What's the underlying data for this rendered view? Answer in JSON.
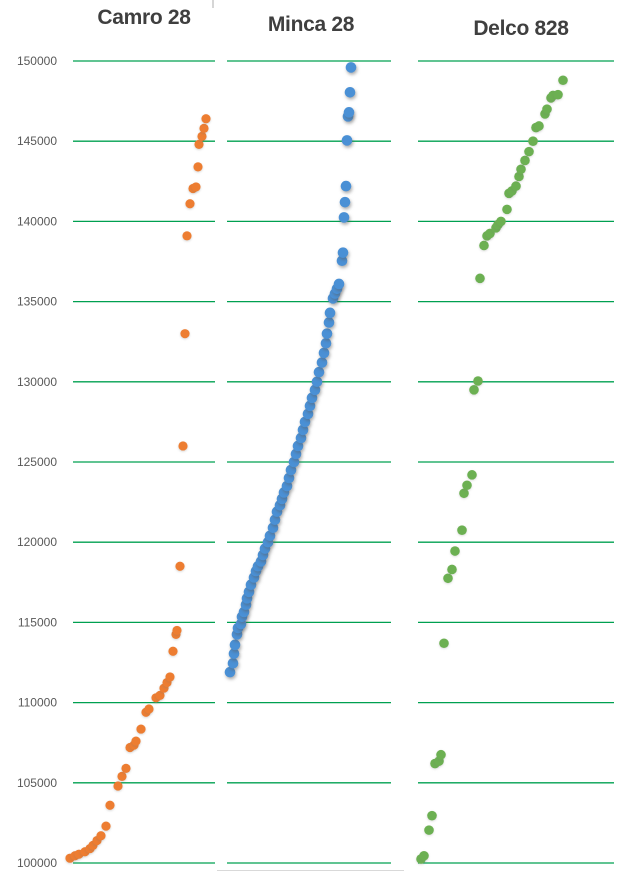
{
  "chart_data": {
    "type": "scatter",
    "description": "Three-panel sorted scatter (strip) chart of values by rank for three product models",
    "ylim": [
      100000,
      150000
    ],
    "ytick_step": 5000,
    "ytick_labels": [
      "150000",
      "145000",
      "140000",
      "135000",
      "130000",
      "125000",
      "120000",
      "115000",
      "110000",
      "105000",
      "100000"
    ],
    "xlabel": "",
    "ylabel": "",
    "grid": true,
    "grid_color": "#00A050",
    "axis_label_color": "#595959",
    "title_color": "#3f3f3f",
    "legend": "none",
    "panels": [
      {
        "title": "Camro 28",
        "color": "#ED7D31",
        "points": [
          [
            70,
            100300
          ],
          [
            75,
            100450
          ],
          [
            79,
            100550
          ],
          [
            85,
            100700
          ],
          [
            90,
            100900
          ],
          [
            93,
            101100
          ],
          [
            97,
            101400
          ],
          [
            101,
            101700
          ],
          [
            106,
            102300
          ],
          [
            110,
            103600
          ],
          [
            118,
            104800
          ],
          [
            122,
            105400
          ],
          [
            126,
            105900
          ],
          [
            130,
            107200
          ],
          [
            134,
            107350
          ],
          [
            136,
            107600
          ],
          [
            141,
            108350
          ],
          [
            146,
            109400
          ],
          [
            149,
            109600
          ],
          [
            156,
            110300
          ],
          [
            160,
            110450
          ],
          [
            164,
            110900
          ],
          [
            167,
            111250
          ],
          [
            170,
            111600
          ],
          [
            173,
            113200
          ],
          [
            176,
            114250
          ],
          [
            177,
            114500
          ],
          [
            180,
            118500
          ],
          [
            183,
            126000
          ],
          [
            185,
            133000
          ],
          [
            187,
            139100
          ],
          [
            190,
            141100
          ],
          [
            193,
            142050
          ],
          [
            196,
            142150
          ],
          [
            198,
            143400
          ],
          [
            199,
            144800
          ],
          [
            202,
            145300
          ],
          [
            204,
            145800
          ],
          [
            206,
            146400
          ]
        ]
      },
      {
        "title": "Minca 28",
        "color": "#4A90D5",
        "points": [
          [
            230,
            111900
          ],
          [
            233,
            112450
          ],
          [
            234,
            113050
          ],
          [
            235,
            113600
          ],
          [
            237,
            114250
          ],
          [
            238,
            114650
          ],
          [
            241,
            114900
          ],
          [
            242,
            115350
          ],
          [
            244,
            115650
          ],
          [
            246,
            116100
          ],
          [
            247,
            116500
          ],
          [
            249,
            116900
          ],
          [
            251,
            117350
          ],
          [
            254,
            117800
          ],
          [
            256,
            118200
          ],
          [
            258,
            118500
          ],
          [
            261,
            118800
          ],
          [
            263,
            119200
          ],
          [
            265,
            119600
          ],
          [
            268,
            120000
          ],
          [
            270,
            120400
          ],
          [
            273,
            120900
          ],
          [
            275,
            121400
          ],
          [
            277,
            121900
          ],
          [
            280,
            122300
          ],
          [
            282,
            122700
          ],
          [
            284,
            123100
          ],
          [
            287,
            123500
          ],
          [
            289,
            124000
          ],
          [
            291,
            124500
          ],
          [
            294,
            125000
          ],
          [
            296,
            125500
          ],
          [
            298,
            126000
          ],
          [
            301,
            126500
          ],
          [
            303,
            127000
          ],
          [
            305,
            127500
          ],
          [
            308,
            128000
          ],
          [
            310,
            128500
          ],
          [
            312,
            129000
          ],
          [
            315,
            129500
          ],
          [
            317,
            130000
          ],
          [
            319,
            130600
          ],
          [
            322,
            131200
          ],
          [
            324,
            131800
          ],
          [
            326,
            132400
          ],
          [
            327,
            133000
          ],
          [
            329,
            133700
          ],
          [
            330,
            134300
          ],
          [
            333,
            135200
          ],
          [
            335,
            135500
          ],
          [
            337,
            135800
          ],
          [
            339,
            136100
          ],
          [
            342,
            137550
          ],
          [
            343,
            138050
          ],
          [
            344,
            140250
          ],
          [
            345,
            141200
          ],
          [
            346,
            142200
          ],
          [
            347,
            145050
          ],
          [
            348,
            146550
          ],
          [
            349,
            146800
          ],
          [
            350,
            148050
          ],
          [
            351,
            149600
          ]
        ]
      },
      {
        "title": "Delco 828",
        "color": "#6CB052",
        "points": [
          [
            421,
            100250
          ],
          [
            424,
            100450
          ],
          [
            429,
            102050
          ],
          [
            432,
            102950
          ],
          [
            435,
            106200
          ],
          [
            439,
            106350
          ],
          [
            441,
            106750
          ],
          [
            444,
            113700
          ],
          [
            448,
            117750
          ],
          [
            452,
            118300
          ],
          [
            455,
            119450
          ],
          [
            462,
            120750
          ],
          [
            464,
            123050
          ],
          [
            467,
            123550
          ],
          [
            472,
            124200
          ],
          [
            474,
            129500
          ],
          [
            478,
            130050
          ],
          [
            480,
            136450
          ],
          [
            484,
            138500
          ],
          [
            487,
            139100
          ],
          [
            490,
            139250
          ],
          [
            496,
            139600
          ],
          [
            498,
            139800
          ],
          [
            501,
            140000
          ],
          [
            507,
            140750
          ],
          [
            509,
            141750
          ],
          [
            512,
            141900
          ],
          [
            516,
            142200
          ],
          [
            519,
            142800
          ],
          [
            521,
            143250
          ],
          [
            525,
            143800
          ],
          [
            529,
            144350
          ],
          [
            533,
            145000
          ],
          [
            536,
            145850
          ],
          [
            539,
            145950
          ],
          [
            545,
            146700
          ],
          [
            547,
            147000
          ],
          [
            551,
            147700
          ],
          [
            553,
            147850
          ],
          [
            558,
            147900
          ],
          [
            563,
            148800
          ]
        ]
      }
    ]
  }
}
